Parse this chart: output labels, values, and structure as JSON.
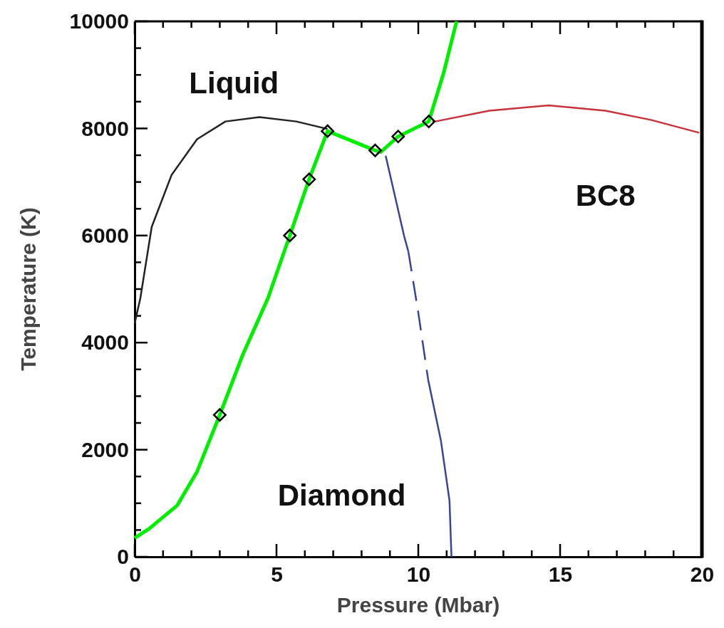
{
  "chart_data": {
    "type": "line",
    "xlabel": "Pressure (Mbar)",
    "ylabel": "Temperature (K)",
    "xlim": [
      0,
      20
    ],
    "ylim": [
      0,
      10000
    ],
    "xticks": [
      0,
      {
        "value": 1,
        "label": null
      },
      {
        "value": 2,
        "label": null
      },
      {
        "value": 3,
        "label": null
      },
      {
        "value": 4,
        "label": null
      },
      5,
      {
        "value": 6,
        "label": null
      },
      {
        "value": 7,
        "label": null
      },
      {
        "value": 8,
        "label": null
      },
      {
        "value": 9,
        "label": null
      },
      10,
      {
        "value": 11,
        "label": null
      },
      {
        "value": 12,
        "label": null
      },
      {
        "value": 13,
        "label": null
      },
      {
        "value": 14,
        "label": null
      },
      15,
      {
        "value": 16,
        "label": null
      },
      {
        "value": 17,
        "label": null
      },
      {
        "value": 18,
        "label": null
      },
      {
        "value": 19,
        "label": null
      },
      20
    ],
    "yticks": [
      0,
      {
        "value": 500,
        "label": null
      },
      {
        "value": 1000,
        "label": null
      },
      {
        "value": 1500,
        "label": null
      },
      2000,
      {
        "value": 2500,
        "label": null
      },
      {
        "value": 3000,
        "label": null
      },
      {
        "value": 3500,
        "label": null
      },
      4000,
      {
        "value": 4500,
        "label": null
      },
      {
        "value": 5000,
        "label": null
      },
      {
        "value": 5500,
        "label": null
      },
      6000,
      {
        "value": 6500,
        "label": null
      },
      {
        "value": 7000,
        "label": null
      },
      {
        "value": 7500,
        "label": null
      },
      8000,
      {
        "value": 8500,
        "label": null
      },
      {
        "value": 9000,
        "label": null
      },
      {
        "value": 9500,
        "label": null
      },
      10000
    ],
    "grid": false,
    "series": [
      {
        "color": "#222222",
        "line_style": "solid",
        "x": [
          0,
          0.2,
          0.6,
          1.3,
          2.2,
          3.2,
          4.4,
          5.7,
          6.8
        ],
        "values": [
          4360,
          4830,
          6160,
          7130,
          7800,
          8130,
          8210,
          8130,
          7990
        ]
      },
      {
        "color": "#c8323c",
        "line_style": "solid",
        "x": [
          10.5,
          12.5,
          14.6,
          16.6,
          18.2,
          19.9
        ],
        "values": [
          8120,
          8330,
          8430,
          8330,
          8160,
          7920
        ]
      },
      {
        "color": "#3a4496",
        "line_style": "solid",
        "x": [
          8.85,
          9.5,
          9.65
        ],
        "values": [
          7490,
          5990,
          5700
        ]
      },
      {
        "color": "#3a4496",
        "line_style": "dashed",
        "x": [
          9.65,
          10.0,
          10.35
        ],
        "values": [
          5700,
          4560,
          3300
        ]
      },
      {
        "color": "#3a4496",
        "line_style": "solid",
        "x": [
          10.35,
          10.8,
          11.1,
          11.17
        ],
        "values": [
          3300,
          2160,
          1050,
          0
        ]
      },
      {
        "color": "#00ee00",
        "line_style": "solid",
        "x": [
          0,
          0.5,
          1.5,
          2.2,
          3.0,
          3.8,
          4.7,
          5.47,
          6.15,
          6.8,
          8.48,
          8.68,
          9.29,
          10.37,
          10.9,
          11.35
        ],
        "values": [
          350,
          520,
          960,
          1590,
          2650,
          3760,
          4830,
          6000,
          7050,
          7950,
          7590,
          7560,
          7850,
          8130,
          9050,
          10000
        ]
      },
      {
        "type": "scatter",
        "color": "#000000",
        "marker": "diamond",
        "x": [
          3.0,
          5.47,
          6.15,
          6.8,
          8.48,
          9.29,
          10.37
        ],
        "values": [
          2650,
          6000,
          7050,
          7950,
          7590,
          7850,
          8130
        ]
      }
    ],
    "annotations": [
      "Liquid",
      "BC8",
      "Diamond"
    ]
  }
}
